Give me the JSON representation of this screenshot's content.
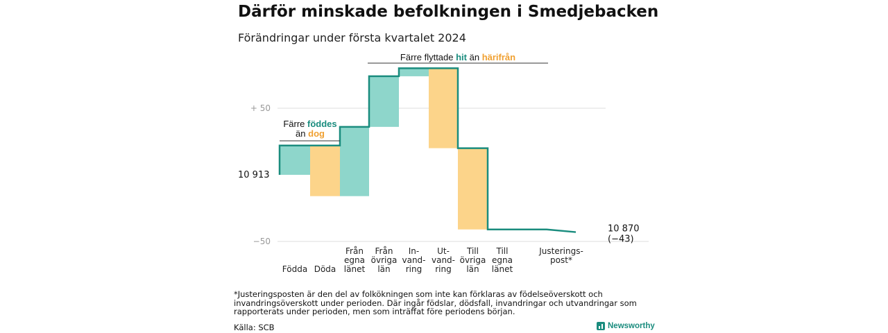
{
  "title": "Därför minskade befolkningen i Smedjebacken",
  "subtitle": "Förändringar under första kvartalet 2024",
  "colors": {
    "increase": "#8ed6cb",
    "decrease": "#fcd48a",
    "line": "#1a8c7e",
    "hit": "#1a8c7e",
    "harifran": "#f0a030",
    "grid": "#dddddd",
    "axis_label": "#999999"
  },
  "chart_data": {
    "type": "waterfall",
    "start_label": "10  913",
    "end_label": [
      "10 870",
      "(−43)"
    ],
    "y_ticks": [
      {
        "value": 50,
        "label": "+  50"
      },
      {
        "value": -50,
        "label": "−50"
      }
    ],
    "ylim": [
      -50,
      80
    ],
    "steps": [
      {
        "lines": [
          "Födda"
        ],
        "value": 22,
        "kind": "increase"
      },
      {
        "lines": [
          "Döda"
        ],
        "value": -38,
        "kind": "decrease"
      },
      {
        "lines": [
          "Från",
          "egna",
          "länet"
        ],
        "value": 52,
        "kind": "increase"
      },
      {
        "lines": [
          "Från",
          "övriga",
          "län"
        ],
        "value": 38,
        "kind": "increase"
      },
      {
        "lines": [
          "In-",
          "vand-",
          "ring"
        ],
        "value": 6,
        "kind": "increase"
      },
      {
        "lines": [
          "Ut-",
          "vand-",
          "ring"
        ],
        "value": -60,
        "kind": "decrease"
      },
      {
        "lines": [
          "Till",
          "övriga",
          "län"
        ],
        "value": -61,
        "kind": "decrease"
      },
      {
        "lines": [
          "Till",
          "egna",
          "länet"
        ],
        "value": 0,
        "kind": "decrease"
      },
      {
        "lines": [
          "Justerings-",
          "post*"
        ],
        "value": -2,
        "kind": "adjustment"
      }
    ]
  },
  "annotations": {
    "births": {
      "line1": "Färre",
      "word1": "föddes",
      "line2": "än",
      "word2": "dog"
    },
    "moves": {
      "prefix": "Färre flyttade",
      "word1": "hit",
      "middle": "än",
      "word2": "härifrån"
    }
  },
  "footnote": "*Justeringsposten är den del av folkökningen som inte kan förklaras av födelseöverskott och invandringsöverskott under perioden. Där ingår födslar, dödsfall, invandringar och utvandringar som rapporterats under perioden, men som inträffat före periodens början.",
  "source": "Källa: SCB",
  "brand": "Newsworthy"
}
